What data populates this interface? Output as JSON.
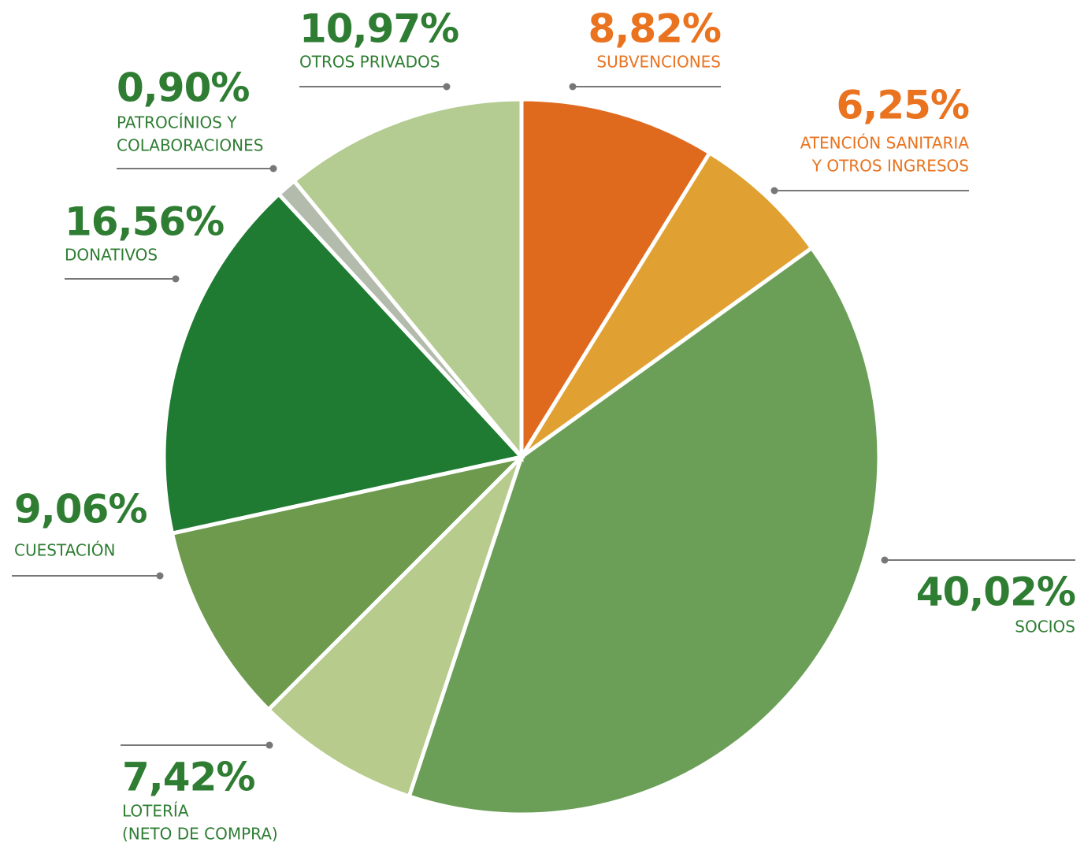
{
  "chart_data": {
    "type": "pie",
    "categories": [
      [
        "SUBVENCIONES"
      ],
      [
        "ATENCIÓN SANITARIA",
        "Y OTROS INGRESOS"
      ],
      [
        "SOCIOS"
      ],
      [
        "LOTERÍA",
        "(NETO DE COMPRA)"
      ],
      [
        "CUESTACIÓN"
      ],
      [
        "DONATIVOS"
      ],
      [
        "PATROCÍNIOS Y",
        "COLABORACIONES"
      ],
      [
        "OTROS PRIVADOS"
      ]
    ],
    "values": [
      8.82,
      6.25,
      40.02,
      7.42,
      9.06,
      16.56,
      0.9,
      10.97
    ],
    "value_labels": [
      "8,82%",
      "6,25%",
      "40,02%",
      "7,42%",
      "9,06%",
      "16,56%",
      "0,90%",
      "10,97%"
    ],
    "colors": [
      "#df6a1e",
      "#e0a132",
      "#6b9f57",
      "#b7cb8c",
      "#6d9a4c",
      "#1f7a32",
      "#b3bbac",
      "#b4cc92"
    ],
    "label_colors": [
      "#e9731f",
      "#e9731f",
      "#2e7d32",
      "#2e7d32",
      "#2e7d32",
      "#2e7d32",
      "#2e7d32",
      "#2e7d32"
    ]
  }
}
